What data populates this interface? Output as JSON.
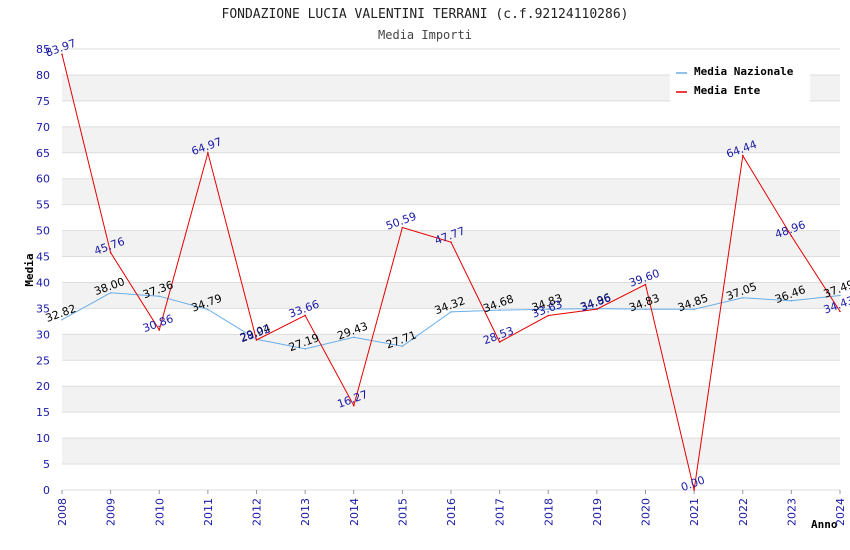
{
  "chart_data": {
    "type": "line",
    "title": "FONDAZIONE LUCIA VALENTINI TERRANI (c.f.92124110286)",
    "subtitle": "Media Importi",
    "xlabel": "Anno",
    "ylabel": "Media",
    "ylim": [
      0,
      85
    ],
    "yticks": [
      0,
      5,
      10,
      15,
      20,
      25,
      30,
      35,
      40,
      45,
      50,
      55,
      60,
      65,
      70,
      75,
      80,
      85
    ],
    "x": [
      "2008",
      "2009",
      "2010",
      "2011",
      "2012",
      "2013",
      "2014",
      "2015",
      "2016",
      "2017",
      "2018",
      "2019",
      "2020",
      "2021",
      "2022",
      "2023",
      "2024"
    ],
    "series": [
      {
        "name": "Media Nazionale",
        "color": "#6aaee8",
        "label_color": "#000000",
        "values": [
          32.82,
          38.0,
          37.36,
          34.79,
          29.04,
          27.19,
          29.43,
          27.71,
          34.32,
          34.68,
          34.83,
          34.96,
          34.83,
          34.85,
          37.05,
          36.46,
          37.49
        ],
        "labels": [
          "32.82",
          "38.00",
          "37.36",
          "34.79",
          "29.04",
          "27.19",
          "29.43",
          "27.71",
          "34.32",
          "34.68",
          "34.83",
          "34.96",
          "34.83",
          "34.85",
          "37.05",
          "36.46",
          "37.49"
        ]
      },
      {
        "name": "Media Ente",
        "color": "#e60000",
        "label_color": "#1a1aa6",
        "values": [
          83.97,
          45.76,
          30.86,
          64.97,
          28.92,
          33.66,
          16.27,
          50.59,
          47.77,
          28.53,
          33.63,
          34.86,
          39.6,
          0.0,
          64.44,
          48.96,
          34.43
        ],
        "labels": [
          "83.97",
          "45.76",
          "30.86",
          "64.97",
          "28.92",
          "33.66",
          "16.27",
          "50.59",
          "47.77",
          "28.53",
          "33.63",
          "34.86",
          "39.60",
          "0.00",
          "64.44",
          "48.96",
          "34.43"
        ]
      }
    ],
    "legend": "top-right",
    "grid": true
  }
}
